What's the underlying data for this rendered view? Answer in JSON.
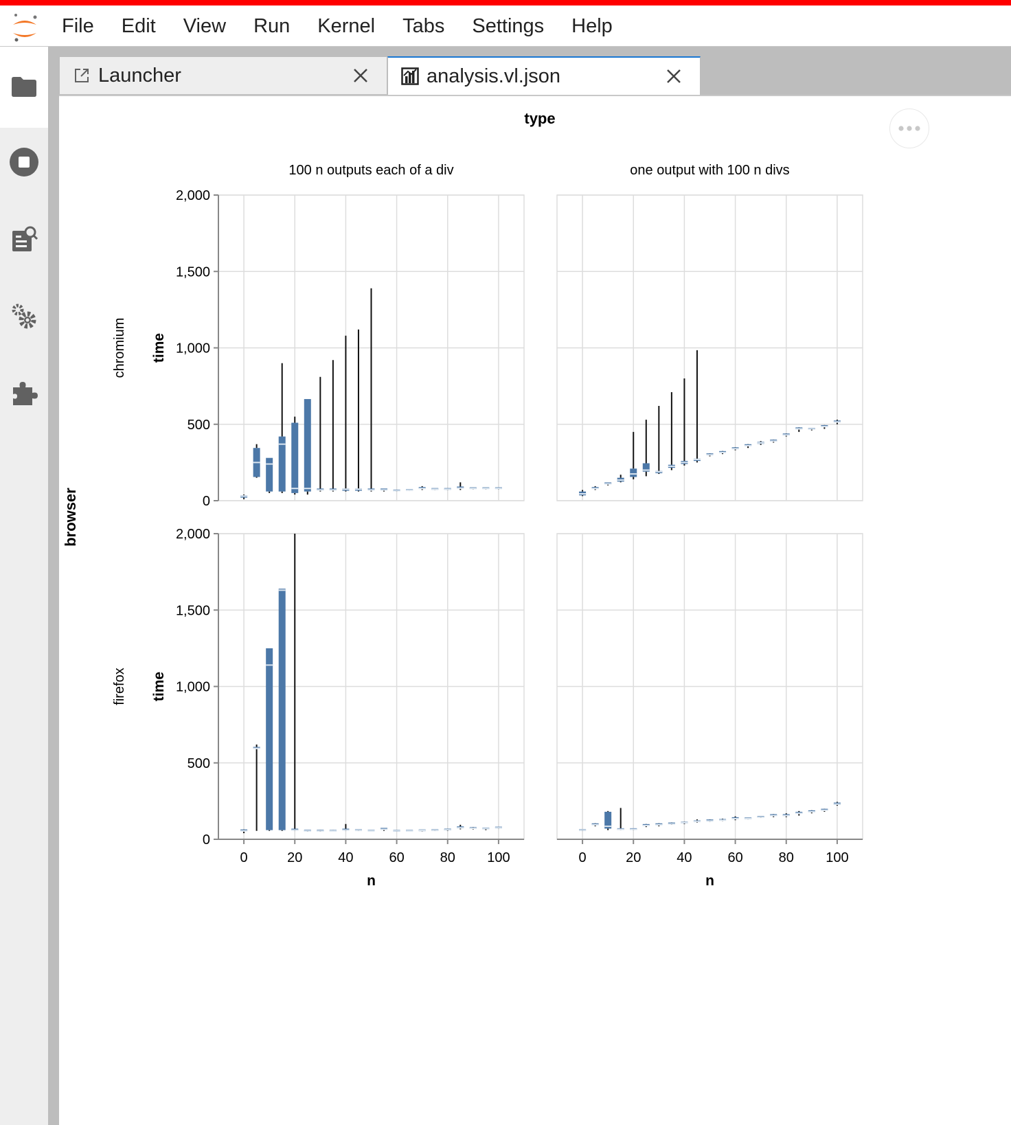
{
  "menu": {
    "items": [
      "File",
      "Edit",
      "View",
      "Run",
      "Kernel",
      "Tabs",
      "Settings",
      "Help"
    ]
  },
  "tabs": [
    {
      "label": "Launcher",
      "icon": "launch-icon"
    },
    {
      "label": "analysis.vl.json",
      "icon": "vega-chart-icon"
    }
  ],
  "sidebar": {
    "icons": [
      "folder-icon",
      "stop-circle-icon",
      "property-inspector-icon",
      "gears-icon",
      "puzzle-piece-icon"
    ]
  },
  "colors": {
    "accent": "#f00",
    "box_fill": "#4c78a8",
    "median": "#dce6f0",
    "whisker": "#111111"
  },
  "chart_data": {
    "type": "boxplot",
    "column_facet_title": "type",
    "row_facet_title": "browser",
    "columns": [
      "100 n outputs each of a div",
      "one output with 100 n divs"
    ],
    "rows": [
      "chromium",
      "firefox"
    ],
    "xlabel": "n",
    "ylabel": "time",
    "xlim": [
      -10,
      110
    ],
    "ylim": [
      0,
      2000
    ],
    "xticks": [
      0,
      20,
      40,
      60,
      80,
      100
    ],
    "yticks": [
      0,
      500,
      1000,
      1500,
      2000
    ],
    "ytick_labels": [
      "0",
      "500",
      "1,000",
      "1,500",
      "2,000"
    ],
    "grid": true,
    "panels": [
      {
        "row": "chromium",
        "column": "100 n outputs each of a div",
        "boxes": [
          [
            0,
            10,
            20,
            30,
            35,
            40
          ],
          [
            5,
            150,
            155,
            250,
            345,
            370
          ],
          [
            10,
            50,
            60,
            240,
            280,
            280
          ],
          [
            15,
            50,
            60,
            370,
            420,
            900
          ],
          [
            20,
            40,
            50,
            80,
            510,
            550
          ],
          [
            25,
            40,
            60,
            80,
            665,
            665
          ],
          [
            30,
            60,
            65,
            70,
            75,
            810
          ],
          [
            35,
            60,
            65,
            70,
            75,
            920
          ],
          [
            40,
            60,
            65,
            75,
            80,
            1080
          ],
          [
            45,
            60,
            65,
            75,
            80,
            1120
          ],
          [
            50,
            60,
            65,
            70,
            75,
            1390
          ],
          [
            55,
            60,
            65,
            70,
            75,
            75
          ],
          [
            60,
            60,
            63,
            65,
            68,
            70
          ],
          [
            65,
            65,
            67,
            70,
            72,
            75
          ],
          [
            70,
            70,
            75,
            80,
            85,
            95
          ],
          [
            75,
            70,
            72,
            75,
            78,
            80
          ],
          [
            80,
            70,
            72,
            75,
            78,
            80
          ],
          [
            85,
            70,
            78,
            82,
            88,
            120
          ],
          [
            90,
            75,
            78,
            80,
            83,
            85
          ],
          [
            95,
            75,
            78,
            80,
            83,
            85
          ],
          [
            100,
            75,
            78,
            80,
            83,
            85
          ]
        ]
      },
      {
        "row": "chromium",
        "column": "one output with 100 n divs",
        "boxes": [
          [
            0,
            30,
            35,
            45,
            60,
            70
          ],
          [
            5,
            70,
            75,
            80,
            85,
            95
          ],
          [
            10,
            100,
            105,
            110,
            115,
            115
          ],
          [
            15,
            120,
            125,
            135,
            150,
            170
          ],
          [
            20,
            140,
            155,
            175,
            210,
            450
          ],
          [
            25,
            160,
            190,
            200,
            245,
            530
          ],
          [
            30,
            175,
            180,
            190,
            195,
            620
          ],
          [
            35,
            200,
            215,
            225,
            235,
            710
          ],
          [
            40,
            230,
            240,
            250,
            260,
            800
          ],
          [
            45,
            250,
            260,
            270,
            275,
            985
          ],
          [
            50,
            290,
            295,
            300,
            305,
            310
          ],
          [
            55,
            305,
            310,
            315,
            320,
            325
          ],
          [
            60,
            330,
            335,
            340,
            345,
            350
          ],
          [
            65,
            345,
            355,
            360,
            365,
            370
          ],
          [
            70,
            365,
            372,
            378,
            385,
            390
          ],
          [
            75,
            380,
            385,
            390,
            395,
            400
          ],
          [
            80,
            420,
            425,
            430,
            435,
            440
          ],
          [
            85,
            450,
            465,
            470,
            475,
            480
          ],
          [
            90,
            460,
            465,
            470,
            472,
            475
          ],
          [
            95,
            470,
            480,
            485,
            490,
            495
          ],
          [
            100,
            500,
            510,
            515,
            520,
            530
          ]
        ]
      },
      {
        "row": "firefox",
        "column": "100 n outputs each of a div",
        "boxes": [
          [
            0,
            40,
            50,
            55,
            60,
            65
          ],
          [
            5,
            55,
            590,
            595,
            600,
            620
          ],
          [
            10,
            55,
            60,
            1140,
            1250,
            1250
          ],
          [
            15,
            55,
            60,
            1630,
            1640,
            1640
          ],
          [
            20,
            55,
            58,
            60,
            65,
            2000
          ],
          [
            25,
            50,
            52,
            55,
            58,
            60
          ],
          [
            30,
            50,
            52,
            55,
            58,
            62
          ],
          [
            35,
            52,
            54,
            56,
            58,
            62
          ],
          [
            40,
            55,
            58,
            60,
            65,
            100
          ],
          [
            45,
            55,
            57,
            60,
            62,
            65
          ],
          [
            50,
            52,
            54,
            56,
            58,
            60
          ],
          [
            55,
            55,
            60,
            65,
            70,
            72
          ],
          [
            60,
            50,
            52,
            55,
            57,
            60
          ],
          [
            65,
            52,
            54,
            56,
            58,
            60
          ],
          [
            70,
            52,
            55,
            58,
            60,
            62
          ],
          [
            75,
            55,
            57,
            60,
            62,
            65
          ],
          [
            80,
            55,
            58,
            62,
            65,
            68
          ],
          [
            85,
            65,
            70,
            75,
            80,
            95
          ],
          [
            90,
            65,
            68,
            72,
            75,
            80
          ],
          [
            95,
            60,
            65,
            70,
            72,
            75
          ],
          [
            100,
            70,
            72,
            75,
            78,
            80
          ]
        ]
      },
      {
        "row": "firefox",
        "column": "one output with 100 n divs",
        "boxes": [
          [
            0,
            55,
            58,
            60,
            62,
            65
          ],
          [
            5,
            85,
            90,
            95,
            100,
            105
          ],
          [
            10,
            60,
            70,
            85,
            180,
            185
          ],
          [
            15,
            60,
            62,
            65,
            68,
            205
          ],
          [
            20,
            60,
            62,
            65,
            68,
            70
          ],
          [
            25,
            80,
            85,
            90,
            95,
            100
          ],
          [
            30,
            85,
            90,
            95,
            100,
            105
          ],
          [
            35,
            95,
            98,
            100,
            105,
            110
          ],
          [
            40,
            100,
            105,
            108,
            110,
            115
          ],
          [
            45,
            110,
            115,
            118,
            120,
            130
          ],
          [
            50,
            115,
            118,
            120,
            125,
            130
          ],
          [
            55,
            120,
            122,
            125,
            128,
            135
          ],
          [
            60,
            125,
            130,
            135,
            140,
            150
          ],
          [
            65,
            130,
            133,
            135,
            138,
            140
          ],
          [
            70,
            140,
            143,
            145,
            148,
            150
          ],
          [
            75,
            145,
            150,
            155,
            160,
            165
          ],
          [
            80,
            145,
            150,
            155,
            160,
            170
          ],
          [
            85,
            155,
            165,
            170,
            175,
            185
          ],
          [
            90,
            170,
            175,
            180,
            185,
            190
          ],
          [
            95,
            180,
            185,
            190,
            195,
            200
          ],
          [
            100,
            220,
            225,
            230,
            240,
            245
          ]
        ]
      }
    ]
  }
}
